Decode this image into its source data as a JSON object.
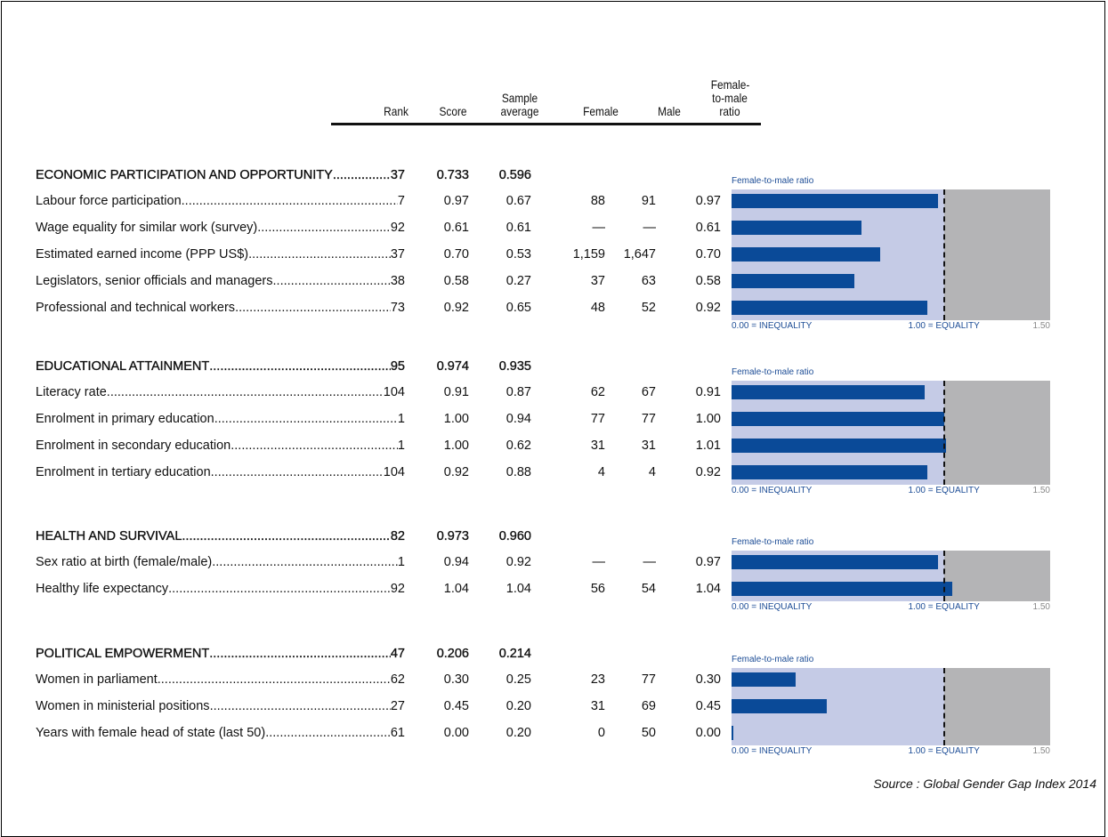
{
  "columns": {
    "rank": "Rank",
    "score": "Score",
    "average": "Sample average",
    "female": "Female",
    "male": "Male",
    "ratio": "Female-to-male ratio"
  },
  "chart_label": "Female-to-male ratio",
  "scale": {
    "lim": [
      0,
      1.5
    ],
    "equality": 1,
    "ticks": [
      {
        "value": 0,
        "label": "0.00 = INEQUALITY"
      },
      {
        "value": 1,
        "label": "1.00 = EQUALITY"
      },
      {
        "value": 1.5,
        "label": "1.50"
      }
    ]
  },
  "sections": [
    {
      "name": "ECONOMIC PARTICIPATION AND OPPORTUNITY",
      "rank": "37",
      "score": "0.733",
      "average": "0.596",
      "rows": [
        {
          "name": "Labour force participation",
          "rank": "7",
          "score": "0.97",
          "average": "0.67",
          "female": "88",
          "male": "91",
          "ratio": 0.97,
          "ratio_label": "0.97"
        },
        {
          "name": "Wage equality for similar work (survey)",
          "rank": "92",
          "score": "0.61",
          "average": "0.61",
          "female": "—",
          "male": "—",
          "ratio": 0.61,
          "ratio_label": "0.61"
        },
        {
          "name": "Estimated earned income (PPP US$)",
          "rank": "37",
          "score": "0.70",
          "average": "0.53",
          "female": "1,159",
          "male": "1,647",
          "ratio": 0.7,
          "ratio_label": "0.70"
        },
        {
          "name": "Legislators, senior officials and managers",
          "rank": "38",
          "score": "0.58",
          "average": "0.27",
          "female": "37",
          "male": "63",
          "ratio": 0.58,
          "ratio_label": "0.58"
        },
        {
          "name": "Professional and technical workers",
          "rank": "73",
          "score": "0.92",
          "average": "0.65",
          "female": "48",
          "male": "52",
          "ratio": 0.92,
          "ratio_label": "0.92"
        }
      ]
    },
    {
      "name": "EDUCATIONAL ATTAINMENT",
      "rank": "95",
      "score": "0.974",
      "average": "0.935",
      "rows": [
        {
          "name": "Literacy rate",
          "rank": "104",
          "score": "0.91",
          "average": "0.87",
          "female": "62",
          "male": "67",
          "ratio": 0.91,
          "ratio_label": "0.91"
        },
        {
          "name": "Enrolment in primary education",
          "rank": "1",
          "score": "1.00",
          "average": "0.94",
          "female": "77",
          "male": "77",
          "ratio": 1,
          "ratio_label": "1.00"
        },
        {
          "name": "Enrolment in secondary education",
          "rank": "1",
          "score": "1.00",
          "average": "0.62",
          "female": "31",
          "male": "31",
          "ratio": 1.01,
          "ratio_label": "1.01"
        },
        {
          "name": "Enrolment in tertiary education",
          "rank": "104",
          "score": "0.92",
          "average": "0.88",
          "female": "4",
          "male": "4",
          "ratio": 0.92,
          "ratio_label": "0.92"
        }
      ]
    },
    {
      "name": "HEALTH AND SURVIVAL",
      "rank": "82",
      "score": "0.973",
      "average": "0.960",
      "rows": [
        {
          "name": "Sex ratio at birth (female/male)",
          "rank": "1",
          "score": "0.94",
          "average": "0.92",
          "female": "—",
          "male": "—",
          "ratio": 0.97,
          "ratio_label": "0.97"
        },
        {
          "name": "Healthy life expectancy",
          "rank": "92",
          "score": "1.04",
          "average": "1.04",
          "female": "56",
          "male": "54",
          "ratio": 1.04,
          "ratio_label": "1.04"
        }
      ]
    },
    {
      "name": "POLITICAL EMPOWERMENT",
      "rank": "47",
      "score": "0.206",
      "average": "0.214",
      "rows": [
        {
          "name": "Women in parliament",
          "rank": "62",
          "score": "0.30",
          "average": "0.25",
          "female": "23",
          "male": "77",
          "ratio": 0.3,
          "ratio_label": "0.30"
        },
        {
          "name": "Women in ministerial positions",
          "rank": "27",
          "score": "0.45",
          "average": "0.20",
          "female": "31",
          "male": "69",
          "ratio": 0.45,
          "ratio_label": "0.45"
        },
        {
          "name": "Years with female head of state (last 50)",
          "rank": "61",
          "score": "0.00",
          "average": "0.20",
          "female": "0",
          "male": "50",
          "ratio": 0,
          "ratio_label": "0.00"
        }
      ]
    }
  ],
  "source": "Source : Global Gender Gap Index 2014"
}
